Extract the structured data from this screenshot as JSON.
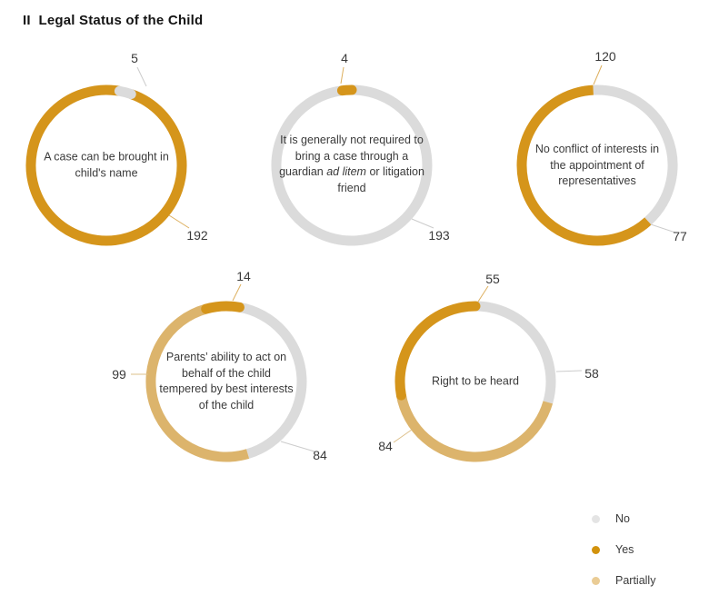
{
  "page": {
    "title": "II  Legal Status of the Child"
  },
  "colors": {
    "segments": {
      "No": "#DBDBDB",
      "Yes": "#D5951B",
      "Partially": "#DCB46C"
    },
    "leader_lines": {
      "No": "#CCCCCC",
      "Yes": "#DDAF5E",
      "Partially": "#DDC08A"
    }
  },
  "legend": {
    "items": [
      {
        "name": "No",
        "label": "No",
        "dot_color": "#E4E4E4"
      },
      {
        "name": "Yes",
        "label": "Yes",
        "dot_color": "#D2920D"
      },
      {
        "name": "Partially",
        "label": "Partially",
        "dot_color": "#EACC95"
      }
    ]
  },
  "chart_data": {
    "type": "pie",
    "subtype": "donut-ring-multiples",
    "title": "II  Legal Status of the Child",
    "legend_position": "bottom-right",
    "legend_entries": [
      "No",
      "Yes",
      "Partially"
    ],
    "total_per_chart": 197,
    "charts": [
      {
        "label": "A case can be brought in child's name",
        "segments": [
          {
            "name": "No",
            "value": 5
          },
          {
            "name": "Yes",
            "value": 192
          }
        ]
      },
      {
        "label": "It is generally not required to bring a case through a guardian ad litem or litigation friend",
        "label_pre": "It is generally not required to bring a case through a guardian ",
        "label_italic": "ad litem",
        "label_post": " or litigation friend",
        "segments": [
          {
            "name": "Yes",
            "value": 4
          },
          {
            "name": "No",
            "value": 193
          }
        ]
      },
      {
        "label": "No conflict of interests in the appointment of representatives",
        "segments": [
          {
            "name": "No",
            "value": 77
          },
          {
            "name": "Yes",
            "value": 120
          }
        ]
      },
      {
        "label": "Parents’ ability to act on behalf of the child tempered by best interests of the child",
        "segments": [
          {
            "name": "No",
            "value": 84
          },
          {
            "name": "Partially",
            "value": 99
          },
          {
            "name": "Yes",
            "value": 14
          }
        ]
      },
      {
        "label": "Right to be heard",
        "segments": [
          {
            "name": "No",
            "value": 58
          },
          {
            "name": "Partially",
            "value": 84
          },
          {
            "name": "Yes",
            "value": 55
          }
        ]
      }
    ]
  }
}
